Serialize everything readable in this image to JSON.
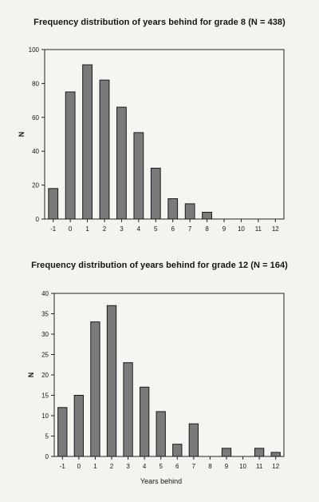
{
  "chart_data": [
    {
      "type": "bar",
      "title": "Frequency distribution of years behind for grade 8 (N = 438)",
      "xlabel": "",
      "ylabel": "N",
      "categories": [
        "-1",
        "0",
        "1",
        "2",
        "3",
        "4",
        "5",
        "6",
        "7",
        "8",
        "9",
        "10",
        "11",
        "12"
      ],
      "values": [
        18,
        75,
        91,
        82,
        66,
        51,
        30,
        12,
        9,
        4,
        0,
        0,
        0,
        0
      ],
      "ylim": [
        0,
        100
      ],
      "yticks": [
        "0",
        "20",
        "40",
        "60",
        "80",
        "100"
      ],
      "grid": false,
      "bar_color": "#7a7a7a"
    },
    {
      "type": "bar",
      "title": "Frequency distribution of years behind for grade 12 (N = 164)",
      "xlabel": "Years behind",
      "ylabel": "N",
      "categories": [
        "-1",
        "0",
        "1",
        "2",
        "3",
        "4",
        "5",
        "6",
        "7",
        "8",
        "9",
        "10",
        "11",
        "12"
      ],
      "values": [
        12,
        15,
        33,
        37,
        23,
        17,
        11,
        3,
        8,
        0,
        2,
        0,
        2,
        1
      ],
      "ylim": [
        0,
        40
      ],
      "yticks": [
        "0",
        "5",
        "10",
        "15",
        "20",
        "25",
        "30",
        "35",
        "40"
      ],
      "grid": false,
      "bar_color": "#7a7a7a"
    }
  ]
}
